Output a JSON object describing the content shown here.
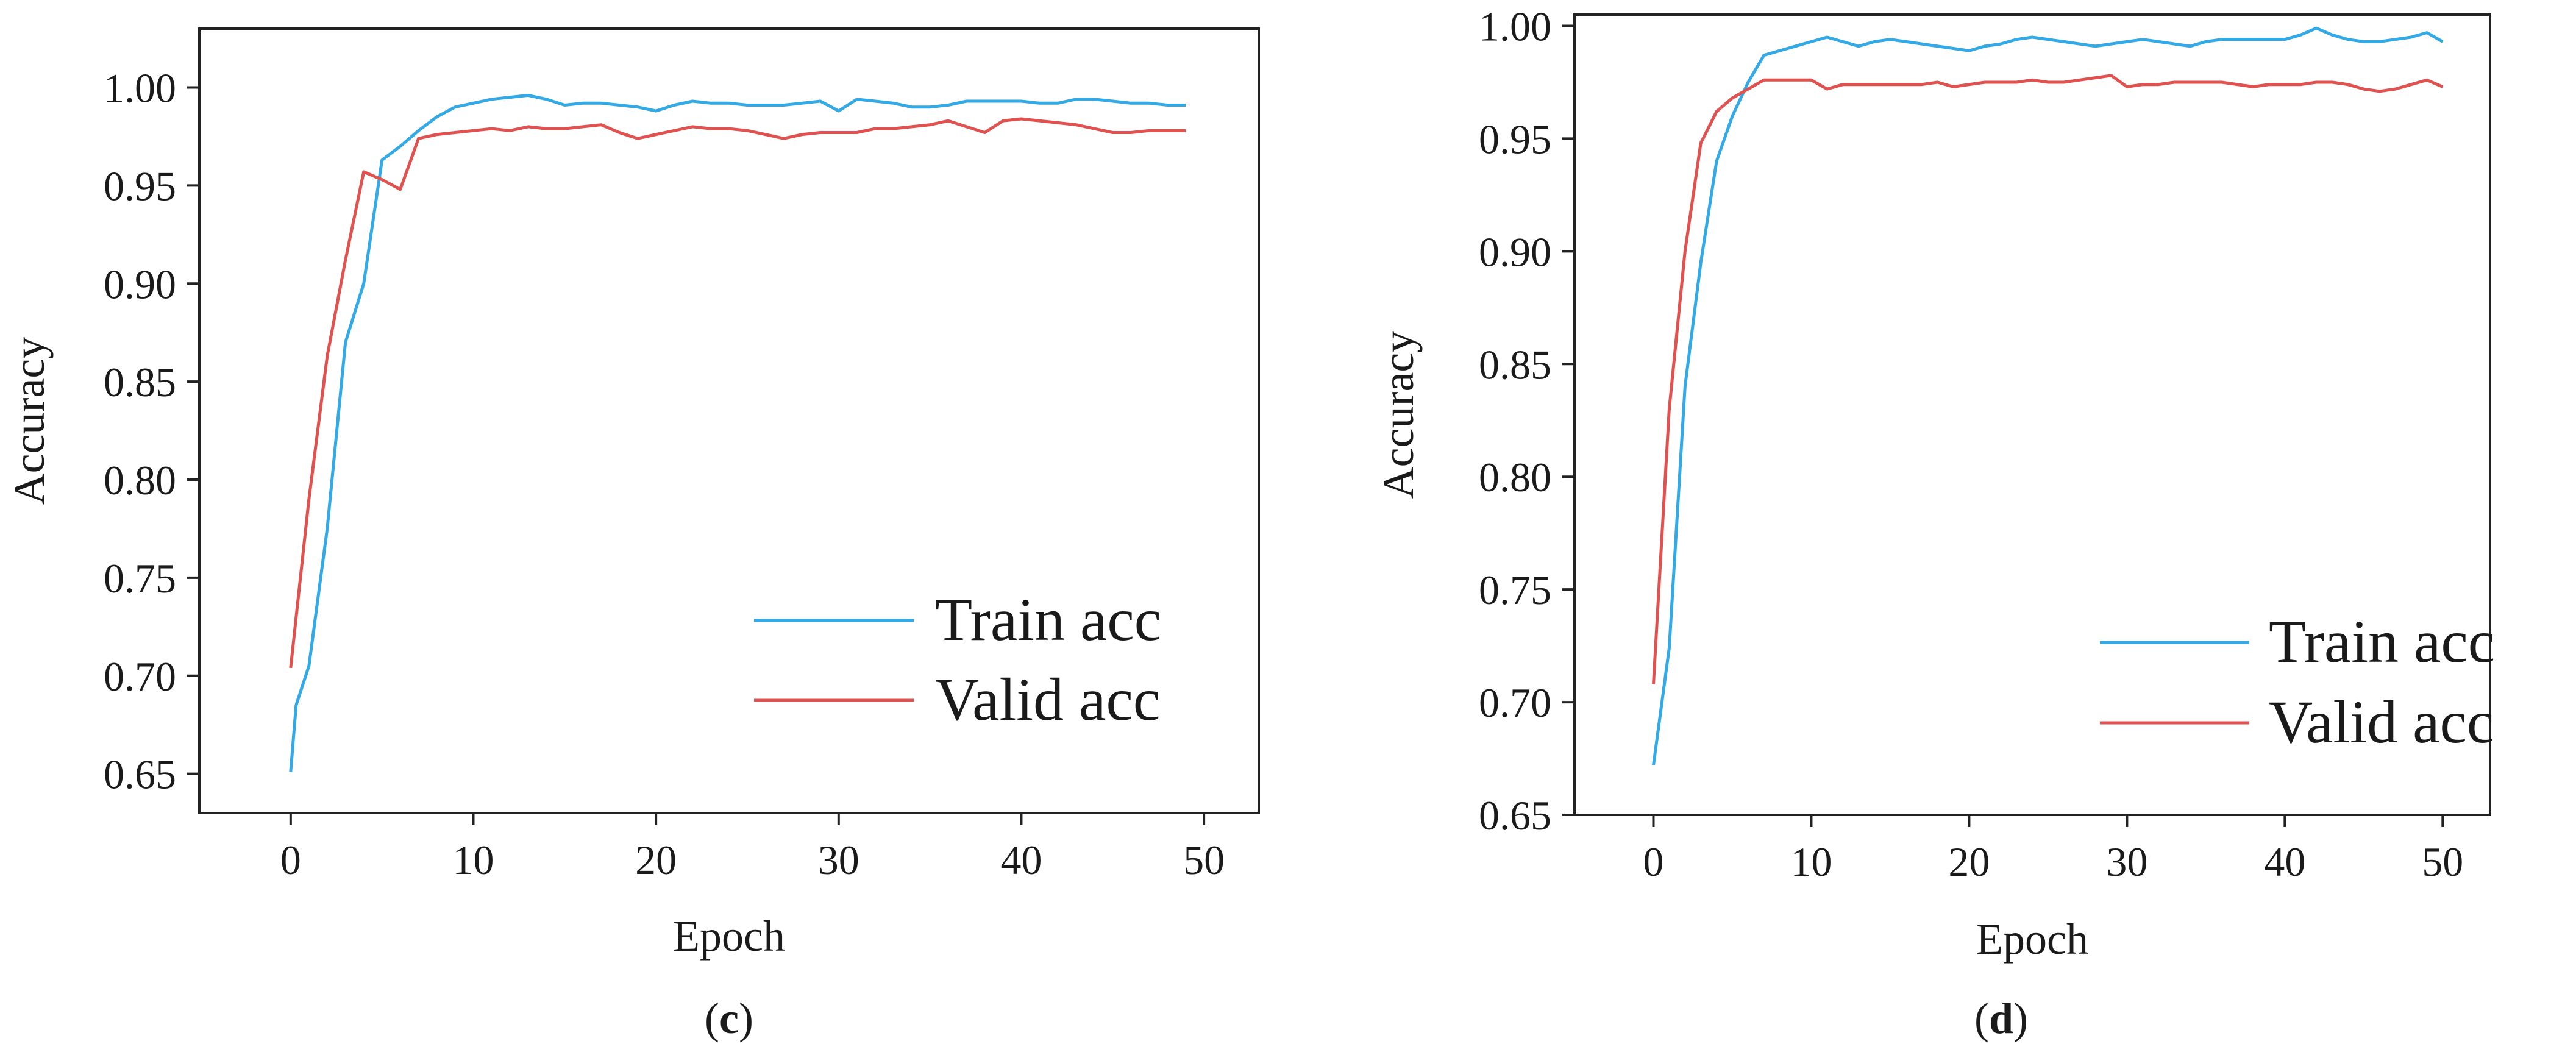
{
  "colors": {
    "train": "#33a9e6",
    "valid": "#e0524f",
    "axis": "#222222"
  },
  "chart_data": [
    {
      "type": "line",
      "panel_label_prefix": "(",
      "panel_letter": "c",
      "panel_label_suffix": ")",
      "xlabel": "Epoch",
      "ylabel": "Accuracy",
      "xlim": [
        -5,
        53
      ],
      "ylim": [
        0.63,
        1.03
      ],
      "xticks": [
        0,
        10,
        20,
        30,
        40,
        50
      ],
      "yticks": [
        0.65,
        0.7,
        0.75,
        0.8,
        0.85,
        0.9,
        0.95,
        1.0
      ],
      "xtick_labels": [
        "0",
        "10",
        "20",
        "30",
        "40",
        "50"
      ],
      "ytick_labels": [
        "0.65",
        "0.70",
        "0.75",
        "0.80",
        "0.85",
        "0.90",
        "0.95",
        "1.00"
      ],
      "legend_position": "bottom-right",
      "series": [
        {
          "name": "Train acc",
          "x": [
            0,
            0.3,
            1,
            2,
            3,
            4,
            5,
            6,
            7,
            8,
            9,
            10,
            11,
            12,
            13,
            14,
            15,
            16,
            17,
            18,
            19,
            20,
            21,
            22,
            23,
            24,
            25,
            26,
            27,
            28,
            29,
            30,
            31,
            32,
            33,
            34,
            35,
            36,
            37,
            38,
            39,
            40,
            41,
            42,
            43,
            44,
            45,
            46,
            47,
            48,
            49
          ],
          "values": [
            0.651,
            0.685,
            0.705,
            0.775,
            0.87,
            0.9,
            0.963,
            0.97,
            0.978,
            0.985,
            0.99,
            0.992,
            0.994,
            0.995,
            0.996,
            0.994,
            0.991,
            0.992,
            0.992,
            0.991,
            0.99,
            0.988,
            0.991,
            0.993,
            0.992,
            0.992,
            0.991,
            0.991,
            0.991,
            0.992,
            0.993,
            0.988,
            0.994,
            0.993,
            0.992,
            0.99,
            0.99,
            0.991,
            0.993,
            0.993,
            0.993,
            0.993,
            0.992,
            0.992,
            0.994,
            0.994,
            0.993,
            0.992,
            0.992,
            0.991,
            0.991
          ]
        },
        {
          "name": "Valid acc",
          "x": [
            0,
            1,
            2,
            3,
            4,
            5,
            6,
            7,
            8,
            9,
            10,
            11,
            12,
            13,
            14,
            15,
            16,
            17,
            18,
            19,
            20,
            21,
            22,
            23,
            24,
            25,
            26,
            27,
            28,
            29,
            30,
            31,
            32,
            33,
            34,
            35,
            36,
            37,
            38,
            39,
            40,
            41,
            42,
            43,
            44,
            45,
            46,
            47,
            48,
            49
          ],
          "values": [
            0.704,
            0.79,
            0.863,
            0.912,
            0.957,
            0.953,
            0.948,
            0.974,
            0.976,
            0.977,
            0.978,
            0.979,
            0.978,
            0.98,
            0.979,
            0.979,
            0.98,
            0.981,
            0.977,
            0.974,
            0.976,
            0.978,
            0.98,
            0.979,
            0.979,
            0.978,
            0.976,
            0.974,
            0.976,
            0.977,
            0.977,
            0.977,
            0.979,
            0.979,
            0.98,
            0.981,
            0.983,
            0.98,
            0.977,
            0.983,
            0.984,
            0.983,
            0.982,
            0.981,
            0.979,
            0.977,
            0.977,
            0.978,
            0.978,
            0.978
          ]
        }
      ]
    },
    {
      "type": "line",
      "panel_label_prefix": "(",
      "panel_letter": "d",
      "panel_label_suffix": ")",
      "xlabel": "Epoch",
      "ylabel": "Accuracy",
      "xlim": [
        -5,
        53
      ],
      "ylim": [
        0.65,
        1.005
      ],
      "xticks": [
        0,
        10,
        20,
        30,
        40,
        50
      ],
      "yticks": [
        0.65,
        0.7,
        0.75,
        0.8,
        0.85,
        0.9,
        0.95,
        1.0
      ],
      "xtick_labels": [
        "0",
        "10",
        "20",
        "30",
        "40",
        "50"
      ],
      "ytick_labels": [
        "0.65",
        "0.70",
        "0.75",
        "0.80",
        "0.85",
        "0.90",
        "0.95",
        "1.00"
      ],
      "legend_position": "bottom-right",
      "series": [
        {
          "name": "Train acc",
          "x": [
            0,
            1,
            2,
            3,
            4,
            5,
            6,
            7,
            8,
            9,
            10,
            11,
            12,
            13,
            14,
            15,
            16,
            17,
            18,
            19,
            20,
            21,
            22,
            23,
            24,
            25,
            26,
            27,
            28,
            29,
            30,
            31,
            32,
            33,
            34,
            35,
            36,
            37,
            38,
            39,
            40,
            41,
            42,
            43,
            44,
            45,
            46,
            47,
            48,
            49,
            50
          ],
          "values": [
            0.672,
            0.724,
            0.84,
            0.895,
            0.94,
            0.96,
            0.975,
            0.987,
            0.989,
            0.991,
            0.993,
            0.995,
            0.993,
            0.991,
            0.993,
            0.994,
            0.993,
            0.992,
            0.991,
            0.99,
            0.989,
            0.991,
            0.992,
            0.994,
            0.995,
            0.994,
            0.993,
            0.992,
            0.991,
            0.992,
            0.993,
            0.994,
            0.993,
            0.992,
            0.991,
            0.993,
            0.994,
            0.994,
            0.994,
            0.994,
            0.994,
            0.996,
            0.999,
            0.996,
            0.994,
            0.993,
            0.993,
            0.994,
            0.995,
            0.997,
            0.993
          ]
        },
        {
          "name": "Valid acc",
          "x": [
            0,
            1,
            2,
            3,
            4,
            5,
            6,
            7,
            8,
            9,
            10,
            11,
            12,
            13,
            14,
            15,
            16,
            17,
            18,
            19,
            20,
            21,
            22,
            23,
            24,
            25,
            26,
            27,
            28,
            29,
            30,
            31,
            32,
            33,
            34,
            35,
            36,
            37,
            38,
            39,
            40,
            41,
            42,
            43,
            44,
            45,
            46,
            47,
            48,
            49,
            50
          ],
          "values": [
            0.708,
            0.83,
            0.9,
            0.948,
            0.962,
            0.968,
            0.972,
            0.976,
            0.976,
            0.976,
            0.976,
            0.972,
            0.974,
            0.974,
            0.974,
            0.974,
            0.974,
            0.974,
            0.975,
            0.973,
            0.974,
            0.975,
            0.975,
            0.975,
            0.976,
            0.975,
            0.975,
            0.976,
            0.977,
            0.978,
            0.973,
            0.974,
            0.974,
            0.975,
            0.975,
            0.975,
            0.975,
            0.974,
            0.973,
            0.974,
            0.974,
            0.974,
            0.975,
            0.975,
            0.974,
            0.972,
            0.971,
            0.972,
            0.974,
            0.976,
            0.973
          ]
        }
      ]
    }
  ]
}
